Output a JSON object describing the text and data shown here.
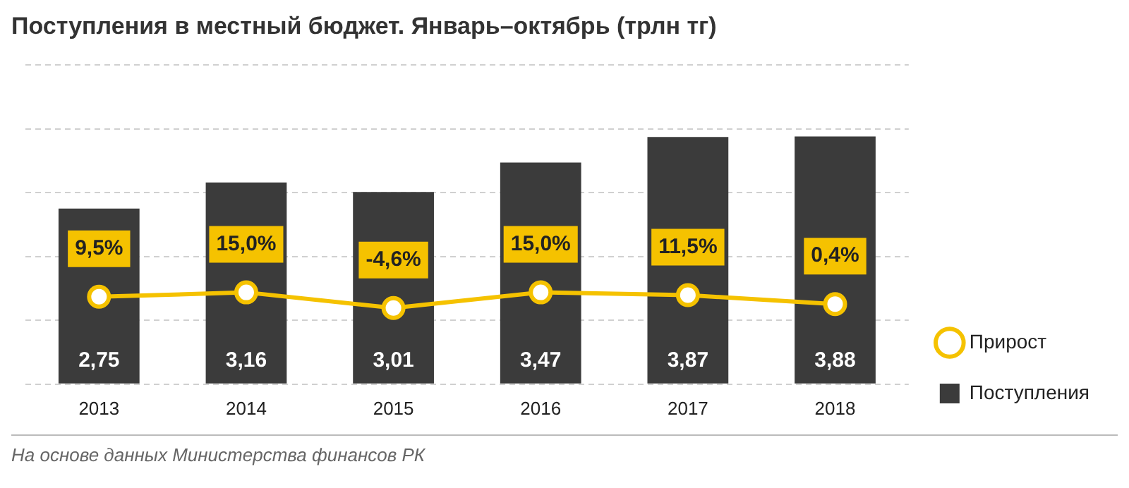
{
  "chart_data": {
    "type": "bar",
    "title": "Поступления в местный бюджет. Январь–октябрь (трлн тг)",
    "categories": [
      "2013",
      "2014",
      "2015",
      "2016",
      "2017",
      "2018"
    ],
    "series": [
      {
        "name": "Поступления",
        "color": "#3b3b3b",
        "values": [
          2.75,
          3.16,
          3.01,
          3.47,
          3.87,
          3.88
        ],
        "value_labels": [
          "2,75",
          "3,16",
          "3,01",
          "3,47",
          "3,87",
          "3,88"
        ]
      },
      {
        "name": "Прирост",
        "type": "line",
        "axis": "y2",
        "color": "#f5c200",
        "marker": "circle",
        "values": [
          9.5,
          15.0,
          -4.6,
          15.0,
          11.5,
          0.4
        ],
        "value_labels": [
          "9,5%",
          "15,0%",
          "-4,6%",
          "15,0%",
          "11,5%",
          "0,4%"
        ]
      }
    ],
    "ylim": [
      0,
      5
    ],
    "yticks": [
      {
        "value": 0,
        "label": null
      },
      {
        "value": 1,
        "label": null
      },
      {
        "value": 2,
        "label": null
      },
      {
        "value": 3,
        "label": null
      },
      {
        "value": 4,
        "label": null
      },
      {
        "value": 5,
        "label": null
      }
    ],
    "grid": "y",
    "tick_labels": "x",
    "legend": "right",
    "annotations": [
      "На основе данных Министерства финансов РК"
    ]
  }
}
